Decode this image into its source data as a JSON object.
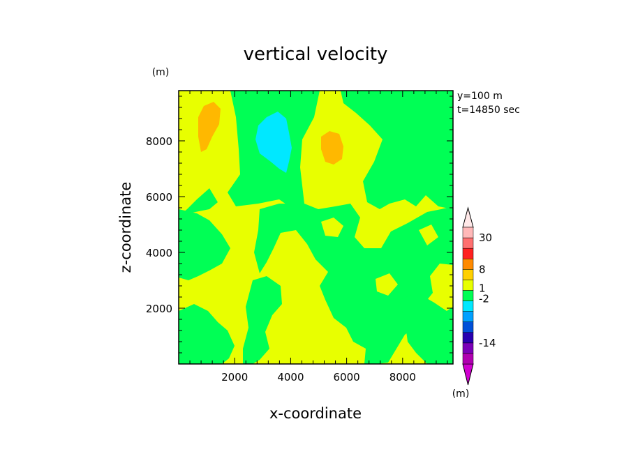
{
  "chart_data": {
    "type": "heatmap",
    "title": "vertical velocity",
    "xlabel": "x-coordinate",
    "ylabel": "z-coordinate",
    "x_unit": "(m)",
    "y_unit": "(m)",
    "info": [
      "y=100 m",
      "t=14850 sec"
    ],
    "xlim": [
      0,
      9800
    ],
    "ylim": [
      0,
      9800
    ],
    "xticks": [
      2000,
      4000,
      6000,
      8000
    ],
    "yticks": [
      2000,
      4000,
      6000,
      8000
    ],
    "colorbar": {
      "labels": [
        "30",
        "8",
        "1",
        "-2",
        "-14"
      ],
      "colors": [
        "#b000b0",
        "#7a00b8",
        "#2800b0",
        "#0050d8",
        "#00a0ff",
        "#00e8ff",
        "#00ff55",
        "#e8ff00",
        "#ffd000",
        "#ff8a00",
        "#ff2020",
        "#ff7070",
        "#ffb8b8"
      ],
      "low_color": "#d000d0",
      "high_color": "#ffe8e8"
    },
    "field_colors": {
      "background": "#e8ff00",
      "green": "#00ff55",
      "orange": "#ffb800",
      "cyan": "#00e8ff"
    }
  }
}
